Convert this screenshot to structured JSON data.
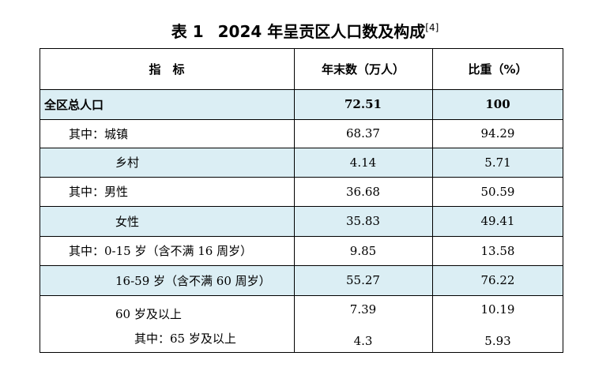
{
  "title": {
    "label": "表 1",
    "text": "2024 年呈贡区人口数及构成",
    "ref": "[4]"
  },
  "table": {
    "headers": [
      "指　标",
      "年末数（万人）",
      "比重（%）"
    ],
    "rows": [
      {
        "label": "全区总人口",
        "value": "72.51",
        "share": "100"
      },
      {
        "label": "其中：城镇",
        "value": "68.37",
        "share": "94.29"
      },
      {
        "label": "乡村",
        "value": "4.14",
        "share": "5.71"
      },
      {
        "label": "其中：男性",
        "value": "36.68",
        "share": "50.59"
      },
      {
        "label": "女性",
        "value": "35.83",
        "share": "49.41"
      },
      {
        "label": "其中：0-15 岁（含不满 16 周岁）",
        "value": "9.85",
        "share": "13.58"
      },
      {
        "label": "16-59 岁（含不满 60 周岁）",
        "value": "55.27",
        "share": "76.22"
      },
      {
        "label": "60 岁及以上",
        "value": "7.39",
        "share": "10.19"
      },
      {
        "label": "其中：65 岁及以上",
        "value": "4.3",
        "share": "5.93"
      }
    ]
  }
}
